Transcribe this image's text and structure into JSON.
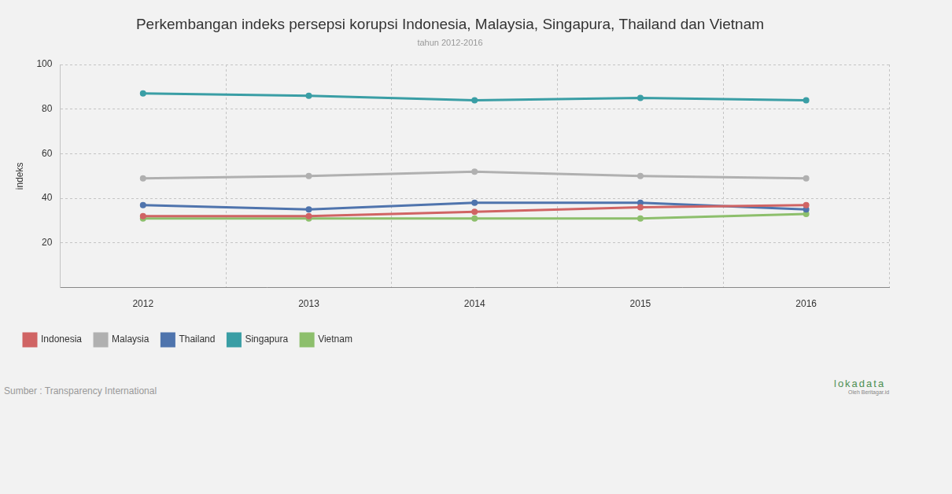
{
  "chart_data": {
    "type": "line",
    "title": "Perkembangan indeks persepsi korupsi Indonesia, Malaysia, Singapura, Thailand dan Vietnam",
    "subtitle": "tahun 2012-2016",
    "y_label": "indeks",
    "categories": [
      "2012",
      "2013",
      "2014",
      "2015",
      "2016"
    ],
    "series": [
      {
        "name": "Indonesia",
        "color": "#d06464",
        "values": [
          32,
          32,
          34,
          36,
          37
        ]
      },
      {
        "name": "Malaysia",
        "color": "#b0b0b0",
        "values": [
          49,
          50,
          52,
          50,
          49
        ]
      },
      {
        "name": "Thailand",
        "color": "#4f74ad",
        "values": [
          37,
          35,
          38,
          38,
          35
        ]
      },
      {
        "name": "Singapura",
        "color": "#3a9ea5",
        "values": [
          87,
          86,
          84,
          85,
          84
        ]
      },
      {
        "name": "Vietnam",
        "color": "#8dbf6c",
        "values": [
          31,
          31,
          31,
          31,
          33
        ]
      }
    ],
    "ylim": [
      0,
      100
    ],
    "yticks": [
      20,
      40,
      60,
      80,
      100
    ],
    "grid": true,
    "legend": "bottom-left",
    "source": "Sumber : Transparency International",
    "logo": "lokadata",
    "logo_sub": "Oleh Beritagar.id"
  }
}
